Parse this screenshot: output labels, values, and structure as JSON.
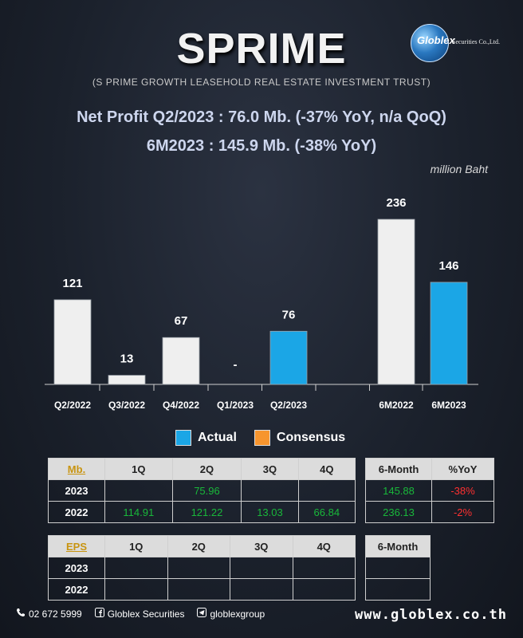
{
  "header": {
    "title": "SPRIME",
    "subtitle": "(S PRIME GROWTH LEASEHOLD REAL ESTATE INVESTMENT TRUST)",
    "headline1": "Net Profit  Q2/2023 : 76.0 Mb. (-37% YoY,  n/a  QoQ)",
    "headline2": "6M2023 : 145.9 Mb. (-38% YoY)",
    "unit": "million Baht"
  },
  "logo": {
    "name": "Globlex",
    "sub": "Securities Co.,Ltd."
  },
  "colors": {
    "actual": "#1ba6e6",
    "consensus": "#f7952e",
    "previous": "#efefef"
  },
  "chart_data": {
    "type": "bar",
    "categories": [
      "Q2/2022",
      "Q3/2022",
      "Q4/2022",
      "Q1/2023",
      "Q2/2023",
      "",
      "6M2022",
      "6M2023"
    ],
    "values": [
      121,
      13,
      67,
      null,
      76,
      null,
      236,
      146
    ],
    "labels": [
      "121",
      "13",
      "67",
      "-",
      "76",
      "",
      "236",
      "146"
    ],
    "kinds": [
      "previous",
      "previous",
      "previous",
      "previous",
      "actual",
      "none",
      "previous",
      "actual"
    ],
    "ylim": [
      0,
      236
    ],
    "legend": [
      "Actual",
      "Consensus"
    ],
    "legend_position": "bottom"
  },
  "mb_table": {
    "headers": [
      "Mb.",
      "1Q",
      "2Q",
      "3Q",
      "4Q"
    ],
    "rows": [
      {
        "label": "2023",
        "cells": [
          "",
          "75.96",
          "",
          ""
        ]
      },
      {
        "label": "2022",
        "cells": [
          "114.91",
          "121.22",
          "13.03",
          "66.84"
        ]
      }
    ]
  },
  "mb_summary": {
    "headers": [
      "6-Month",
      "%YoY"
    ],
    "rows": [
      {
        "cells": [
          "145.88",
          "-38%"
        ]
      },
      {
        "cells": [
          "236.13",
          "-2%"
        ]
      }
    ]
  },
  "eps_table": {
    "headers": [
      "EPS",
      "1Q",
      "2Q",
      "3Q",
      "4Q"
    ],
    "rows": [
      {
        "label": "2023",
        "cells": [
          "",
          "",
          "",
          ""
        ]
      },
      {
        "label": "2022",
        "cells": [
          "",
          "",
          "",
          ""
        ]
      }
    ]
  },
  "eps_summary": {
    "headers": [
      "6-Month"
    ],
    "rows": [
      {
        "cells": [
          ""
        ]
      },
      {
        "cells": [
          ""
        ]
      }
    ]
  },
  "footer": {
    "phone": "02 672 5999",
    "facebook": "Globlex Securities",
    "telegram": "globlexgroup",
    "website": "www.globlex.co.th"
  }
}
